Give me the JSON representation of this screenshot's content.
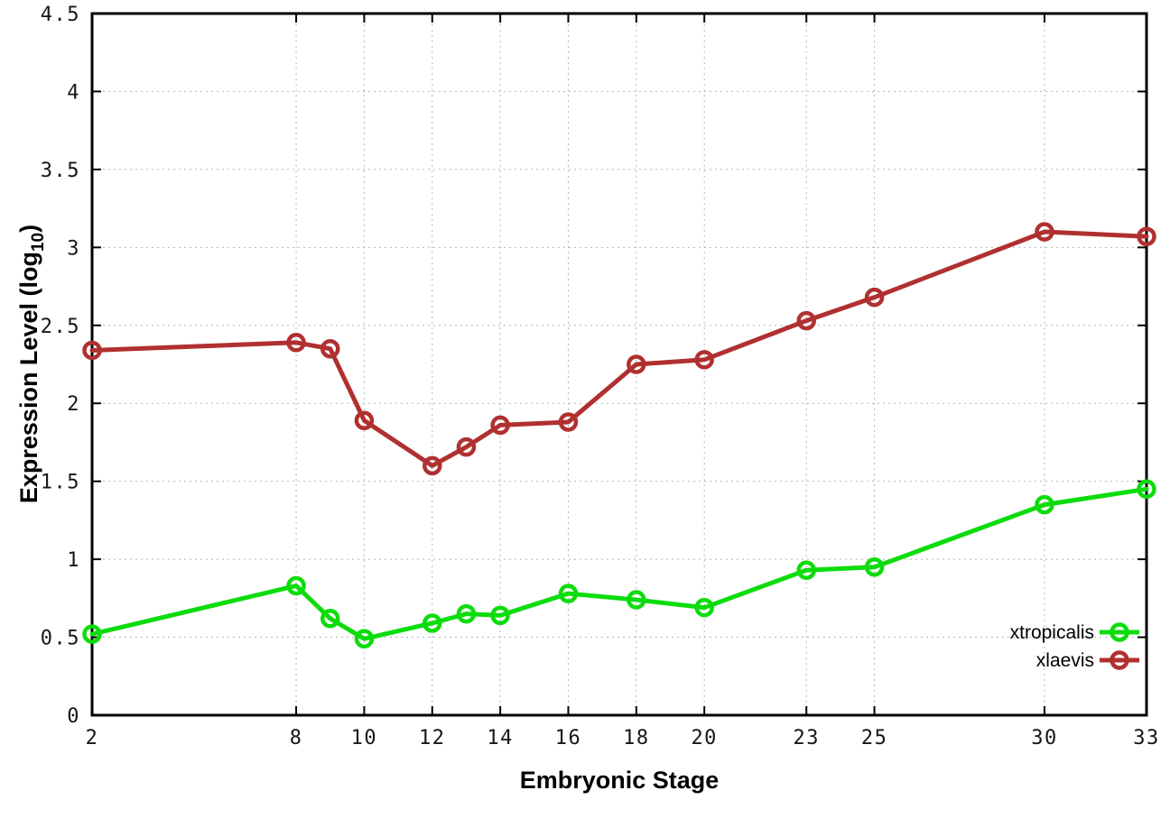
{
  "page": {
    "background": "#ffffff"
  },
  "chart_data": {
    "type": "line",
    "title": "",
    "xlabel": "Embryonic Stage",
    "ylabel": "Expression Level (log10)",
    "ylabel_parts": {
      "pre": "Expression Level (log",
      "sub": "10",
      "post": ")"
    },
    "xlim": [
      2,
      33
    ],
    "ylim": [
      0,
      4.5
    ],
    "xticks": [
      2,
      8,
      10,
      12,
      14,
      16,
      18,
      20,
      23,
      25,
      30,
      33
    ],
    "xtick_labels": [
      "2",
      "8",
      "10",
      "12",
      "14",
      "16",
      "18",
      "20",
      "23",
      "25",
      "30",
      "33"
    ],
    "yticks": [
      0,
      0.5,
      1,
      1.5,
      2,
      2.5,
      3,
      3.5,
      4,
      4.5
    ],
    "ytick_labels": [
      "0",
      "0.5",
      "1",
      "1.5",
      "2",
      "2.5",
      "3",
      "3.5",
      "4",
      "4.5"
    ],
    "grid": true,
    "legend_position": "bottom-right",
    "x": [
      2,
      8,
      9,
      10,
      12,
      13,
      14,
      16,
      18,
      20,
      23,
      25,
      30,
      33
    ],
    "series": [
      {
        "name": "xtropicalis",
        "color": "#0cdc0c",
        "values": [
          0.52,
          0.83,
          0.62,
          0.49,
          0.59,
          0.65,
          0.64,
          0.78,
          0.74,
          0.69,
          0.93,
          0.95,
          1.35,
          1.45
        ]
      },
      {
        "name": "xlaevis",
        "color": "#b03030",
        "values": [
          2.34,
          2.39,
          2.35,
          1.89,
          1.6,
          1.72,
          1.86,
          1.88,
          2.25,
          2.28,
          2.53,
          2.68,
          3.1,
          3.07
        ]
      }
    ],
    "style": {
      "grid_color": "#b5b5b5",
      "axis_color": "#000000",
      "tick_label_color": "#161616",
      "legend_text_color": "#000000",
      "line_width": 5,
      "marker_radius": 8.5,
      "marker_stroke": 4.5
    }
  }
}
